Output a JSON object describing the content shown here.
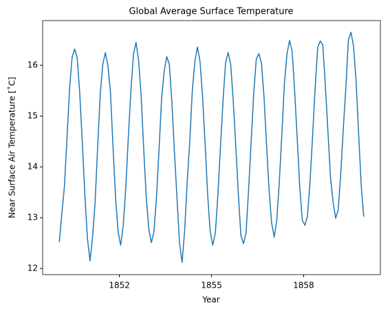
{
  "chart_data": {
    "type": "line",
    "title": "Global Average Surface Temperature",
    "x_label": "Year",
    "y_label": "Near Surface Air Temperature [˚C]",
    "color": "#1f77b4",
    "x": [
      1850.042,
      1850.125,
      1850.208,
      1850.292,
      1850.375,
      1850.458,
      1850.542,
      1850.625,
      1850.708,
      1850.792,
      1850.875,
      1850.958,
      1851.042,
      1851.125,
      1851.208,
      1851.292,
      1851.375,
      1851.458,
      1851.542,
      1851.625,
      1851.708,
      1851.792,
      1851.875,
      1851.958,
      1852.042,
      1852.125,
      1852.208,
      1852.292,
      1852.375,
      1852.458,
      1852.542,
      1852.625,
      1852.708,
      1852.792,
      1852.875,
      1852.958,
      1853.042,
      1853.125,
      1853.208,
      1853.292,
      1853.375,
      1853.458,
      1853.542,
      1853.625,
      1853.708,
      1853.792,
      1853.875,
      1853.958,
      1854.042,
      1854.125,
      1854.208,
      1854.292,
      1854.375,
      1854.458,
      1854.542,
      1854.625,
      1854.708,
      1854.792,
      1854.875,
      1854.958,
      1855.042,
      1855.125,
      1855.208,
      1855.292,
      1855.375,
      1855.458,
      1855.542,
      1855.625,
      1855.708,
      1855.792,
      1855.875,
      1855.958,
      1856.042,
      1856.125,
      1856.208,
      1856.292,
      1856.375,
      1856.458,
      1856.542,
      1856.625,
      1856.708,
      1856.792,
      1856.875,
      1856.958,
      1857.042,
      1857.125,
      1857.208,
      1857.292,
      1857.375,
      1857.458,
      1857.542,
      1857.625,
      1857.708,
      1857.792,
      1857.875,
      1857.958,
      1858.042,
      1858.125,
      1858.208,
      1858.292,
      1858.375,
      1858.458,
      1858.542,
      1858.625,
      1858.708,
      1858.792,
      1858.875,
      1858.958,
      1859.042,
      1859.125,
      1859.208,
      1859.292,
      1859.375,
      1859.458,
      1859.542,
      1859.625,
      1859.708,
      1859.792,
      1859.875,
      1859.958
    ],
    "values": [
      12.52,
      13.08,
      13.61,
      14.55,
      15.52,
      16.15,
      16.32,
      16.15,
      15.45,
      14.48,
      13.45,
      12.6,
      12.15,
      12.62,
      13.3,
      14.4,
      15.42,
      16.02,
      16.25,
      16.0,
      15.48,
      14.4,
      13.4,
      12.72,
      12.46,
      12.85,
      13.6,
      14.6,
      15.5,
      16.22,
      16.45,
      16.1,
      15.4,
      14.35,
      13.4,
      12.78,
      12.51,
      12.72,
      13.4,
      14.35,
      15.35,
      15.88,
      16.17,
      16.02,
      15.3,
      14.3,
      13.4,
      12.5,
      12.12,
      12.75,
      13.7,
      14.5,
      15.5,
      16.08,
      16.36,
      16.08,
      15.4,
      14.45,
      13.45,
      12.72,
      12.46,
      12.7,
      13.45,
      14.4,
      15.3,
      16.05,
      16.25,
      16.02,
      15.3,
      14.4,
      13.45,
      12.65,
      12.49,
      12.7,
      13.55,
      14.5,
      15.45,
      16.12,
      16.23,
      16.05,
      15.4,
      14.45,
      13.55,
      12.9,
      12.62,
      12.95,
      13.7,
      14.65,
      15.65,
      16.22,
      16.49,
      16.28,
      15.5,
      14.55,
      13.6,
      12.95,
      12.85,
      13.03,
      13.7,
      14.6,
      15.55,
      16.35,
      16.48,
      16.4,
      15.6,
      14.7,
      13.8,
      13.32,
      12.99,
      13.15,
      13.85,
      14.75,
      15.55,
      16.5,
      16.65,
      16.38,
      15.7,
      14.65,
      13.65,
      13.02
    ],
    "xlim": [
      1849.5,
      1860.5
    ],
    "xticks": [
      1852,
      1855,
      1858
    ],
    "ylim": [
      11.88,
      16.88
    ],
    "yticks": [
      12,
      13,
      14,
      15,
      16
    ],
    "grid": false
  }
}
